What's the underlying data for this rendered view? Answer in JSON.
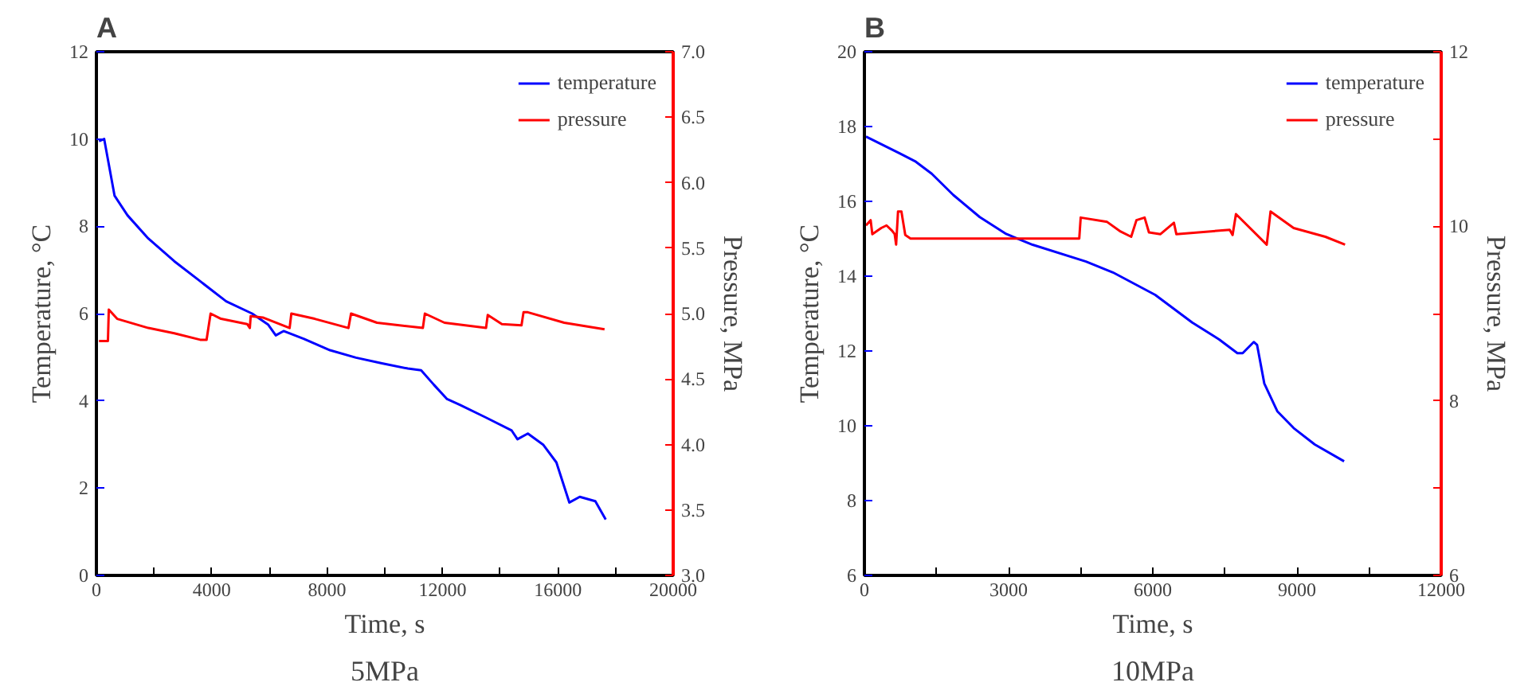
{
  "chart_data": [
    {
      "type": "line",
      "title": "A",
      "annotations": [
        "5MPa"
      ],
      "xlabel": "Time, s",
      "ylabel": "Temperature, °C",
      "y2label": "Pressure, MPa",
      "xlim": [
        0,
        20000
      ],
      "xticks": [
        0,
        {
          "value": 2000,
          "label": null
        },
        4000,
        {
          "value": 6000,
          "label": null
        },
        8000,
        {
          "value": 10000,
          "label": null
        },
        12000,
        {
          "value": 14000,
          "label": null
        },
        16000,
        {
          "value": 18000,
          "label": null
        },
        20000
      ],
      "ylim": [
        0,
        12
      ],
      "yticks": [
        0,
        2,
        4,
        6,
        8,
        10,
        12
      ],
      "y2lim": [
        3,
        7
      ],
      "y2ticks": [
        {
          "value": 3,
          "label": "3.0"
        },
        3.5,
        {
          "value": 4,
          "label": "4.0"
        },
        4.5,
        {
          "value": 5,
          "label": "5.0"
        },
        5.5,
        {
          "value": 6,
          "label": "6.0"
        },
        6.5,
        {
          "value": 7,
          "label": "7.0"
        }
      ],
      "legend": "top right",
      "grid": false,
      "series": [
        {
          "name": "temperature",
          "color": "#0000ff",
          "x": [
            90,
            270,
            630,
            1080,
            1800,
            2700,
            3600,
            4500,
            5400,
            5950,
            6220,
            6490,
            7200,
            8100,
            9000,
            9900,
            10800,
            11260,
            11700,
            12160,
            12600,
            13500,
            14400,
            14600,
            14960,
            15500,
            15950,
            16400,
            16760,
            17300,
            17660
          ],
          "values": [
            9.95,
            10.0,
            8.7,
            8.25,
            7.72,
            7.2,
            6.74,
            6.28,
            6.0,
            5.75,
            5.5,
            5.6,
            5.42,
            5.16,
            4.99,
            4.86,
            4.74,
            4.7,
            4.37,
            4.04,
            3.91,
            3.62,
            3.32,
            3.12,
            3.25,
            2.99,
            2.59,
            1.67,
            1.8,
            1.7,
            1.28
          ]
        },
        {
          "name": "pressure",
          "color": "#ff0000",
          "axis": "y2",
          "x": [
            90,
            400,
            430,
            720,
            1800,
            2700,
            3600,
            3820,
            3960,
            4320,
            5230,
            5320,
            5350,
            5770,
            6700,
            6760,
            7570,
            8740,
            8830,
            9730,
            11320,
            11390,
            12070,
            13510,
            13570,
            14060,
            14740,
            14810,
            14960,
            16220,
            17620
          ],
          "values": [
            4.79,
            4.79,
            5.03,
            4.96,
            4.89,
            4.85,
            4.8,
            4.8,
            5.0,
            4.96,
            4.92,
            4.89,
            4.98,
            4.97,
            4.89,
            5.0,
            4.96,
            4.89,
            5.0,
            4.93,
            4.89,
            5.0,
            4.93,
            4.89,
            4.99,
            4.92,
            4.91,
            5.01,
            5.01,
            4.93,
            4.88
          ]
        }
      ]
    },
    {
      "type": "line",
      "title": "B",
      "annotations": [
        "10MPa"
      ],
      "xlabel": "Time, s",
      "ylabel": "Temperature, °C",
      "y2label": "Pressure, MPa",
      "xlim": [
        0,
        12000
      ],
      "xticks": [
        0,
        {
          "value": 1500,
          "label": null
        },
        3000,
        {
          "value": 4500,
          "label": null
        },
        6000,
        {
          "value": 7500,
          "label": null
        },
        9000,
        {
          "value": 10500,
          "label": null
        },
        12000
      ],
      "ylim": [
        6,
        20
      ],
      "yticks": [
        6,
        8,
        10,
        12,
        14,
        16,
        18,
        20
      ],
      "y2lim": [
        6,
        12
      ],
      "y2ticks": [
        6,
        {
          "value": 7,
          "label": null
        },
        8,
        {
          "value": 9,
          "label": null
        },
        10,
        {
          "value": 11,
          "label": null
        },
        12
      ],
      "legend": "top right",
      "grid": false,
      "series": [
        {
          "name": "temperature",
          "color": "#0000ff",
          "x": [
            33,
            740,
            1070,
            1400,
            1850,
            2400,
            2950,
            3500,
            4610,
            5170,
            6050,
            6820,
            7380,
            7760,
            7870,
            8100,
            8170,
            8320,
            8590,
            8930,
            9370,
            9980
          ],
          "values": [
            17.73,
            17.28,
            17.06,
            16.74,
            16.17,
            15.58,
            15.13,
            14.84,
            14.39,
            14.1,
            13.5,
            12.76,
            12.31,
            11.94,
            11.94,
            12.24,
            12.16,
            11.13,
            10.39,
            9.94,
            9.5,
            9.05
          ]
        },
        {
          "name": "pressure",
          "color": "#ff0000",
          "axis": "y2",
          "x": [
            33,
            130,
            165,
            350,
            460,
            575,
            630,
            660,
            700,
            770,
            850,
            960,
            4470,
            4500,
            5050,
            5330,
            5550,
            5660,
            5830,
            5920,
            6160,
            6440,
            6490,
            7600,
            7660,
            7730,
            8370,
            8450,
            8930,
            9590,
            10000
          ],
          "values": [
            10.01,
            10.07,
            9.91,
            9.98,
            10.01,
            9.95,
            9.91,
            9.79,
            10.17,
            10.17,
            9.9,
            9.86,
            9.86,
            10.1,
            10.05,
            9.94,
            9.88,
            10.07,
            10.1,
            9.93,
            9.91,
            10.04,
            9.91,
            9.96,
            9.9,
            10.14,
            9.79,
            10.17,
            9.98,
            9.88,
            9.79
          ]
        }
      ]
    }
  ]
}
